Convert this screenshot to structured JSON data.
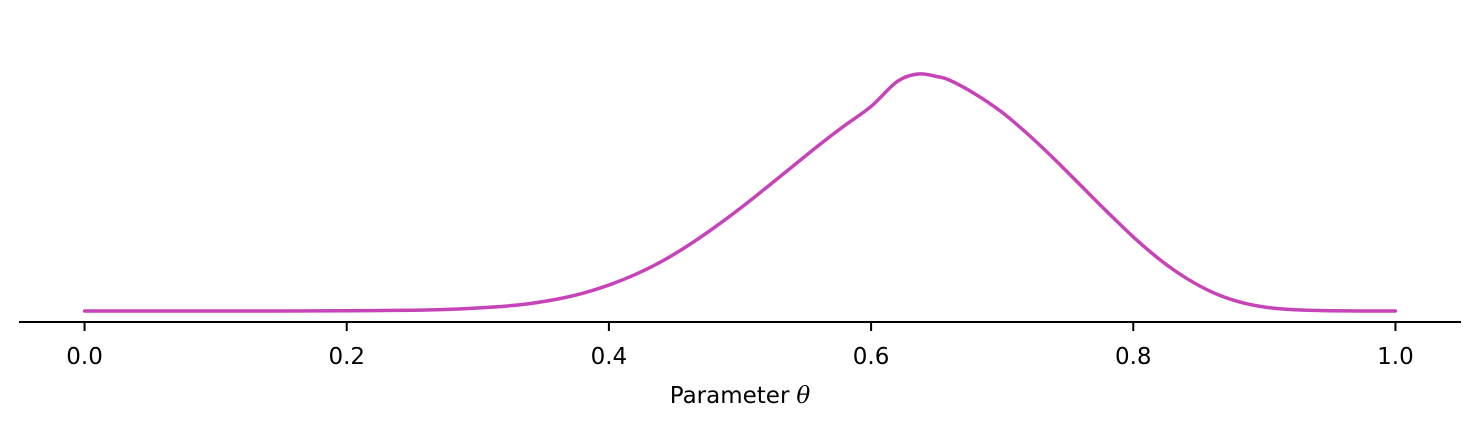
{
  "chart_data": {
    "type": "line",
    "title": "",
    "xlabel_prefix": "Parameter",
    "xlabel_symbol": "θ",
    "ylabel": "",
    "xlim": [
      -0.05,
      1.05
    ],
    "ylim": [
      0,
      1
    ],
    "xticks": [
      0.0,
      0.2,
      0.4,
      0.6,
      0.8,
      1.0
    ],
    "xtick_labels": [
      "0.0",
      "0.2",
      "0.4",
      "0.6",
      "0.8",
      "1.0"
    ],
    "y_axis_visible": false,
    "grid": false,
    "series": [
      {
        "color": "#c644b8",
        "x": [
          0.0,
          0.05,
          0.1,
          0.15,
          0.2,
          0.25,
          0.28,
          0.3,
          0.32,
          0.34,
          0.36,
          0.38,
          0.4,
          0.42,
          0.44,
          0.46,
          0.48,
          0.5,
          0.52,
          0.54,
          0.56,
          0.58,
          0.6,
          0.62,
          0.636,
          0.65,
          0.66,
          0.68,
          0.7,
          0.72,
          0.74,
          0.76,
          0.78,
          0.8,
          0.82,
          0.84,
          0.86,
          0.88,
          0.9,
          0.92,
          0.95,
          1.0
        ],
        "y": [
          0.0,
          0.0,
          0.0,
          0.0,
          0.001,
          0.003,
          0.007,
          0.012,
          0.019,
          0.03,
          0.047,
          0.071,
          0.104,
          0.146,
          0.198,
          0.261,
          0.333,
          0.411,
          0.494,
          0.579,
          0.664,
          0.744,
          0.82,
          0.92,
          0.95,
          0.94,
          0.925,
          0.868,
          0.796,
          0.707,
          0.608,
          0.503,
          0.398,
          0.297,
          0.207,
          0.133,
          0.076,
          0.038,
          0.016,
          0.006,
          0.001,
          0.0
        ]
      }
    ]
  }
}
